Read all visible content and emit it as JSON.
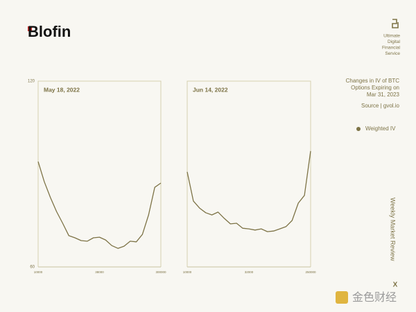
{
  "brand": {
    "logo": "Blofin",
    "tagline": [
      "Ultimate",
      "Digital",
      "Financial",
      "Service"
    ]
  },
  "sidebar": {
    "description": [
      "Changes in IV of BTC",
      "Options Expiring on",
      "Mar 31, 2023"
    ],
    "source": "Source | gvol.io",
    "section": "Weekly Market Review",
    "close": "X"
  },
  "watermark": "金色财经",
  "chart_data": [
    {
      "type": "line",
      "title": "May 18, 2022",
      "categories": [
        "10000",
        null,
        null,
        null,
        null,
        null,
        null,
        null,
        null,
        null,
        "38000",
        null,
        null,
        null,
        null,
        null,
        null,
        null,
        null,
        null,
        "300000"
      ],
      "series": [
        {
          "name": "Weighted IV",
          "color": "#7d7346",
          "values": [
            94.0,
            87.5,
            82.4,
            77.9,
            74.1,
            70.1,
            69.4,
            68.5,
            68.3,
            69.4,
            69.6,
            68.7,
            66.9,
            66.0,
            66.7,
            68.3,
            68.1,
            70.5,
            76.8,
            85.7,
            87.1
          ]
        }
      ],
      "ylim": [
        60,
        120
      ],
      "yticks": [
        60,
        120
      ]
    },
    {
      "type": "line",
      "title": "Jun 14, 2022",
      "categories": [
        "10000",
        null,
        null,
        null,
        null,
        null,
        null,
        null,
        null,
        null,
        "32000",
        null,
        null,
        null,
        null,
        null,
        null,
        null,
        null,
        null,
        "250000"
      ],
      "series": [
        {
          "color": "#7d7346",
          "values": [
            90.7,
            81.3,
            79.0,
            77.5,
            76.8,
            77.7,
            75.7,
            73.9,
            74.1,
            72.5,
            72.3,
            71.9,
            72.3,
            71.4,
            71.6,
            72.3,
            73.0,
            75.0,
            80.6,
            83.1,
            97.4
          ]
        }
      ],
      "ylim": [
        60,
        120
      ]
    }
  ]
}
